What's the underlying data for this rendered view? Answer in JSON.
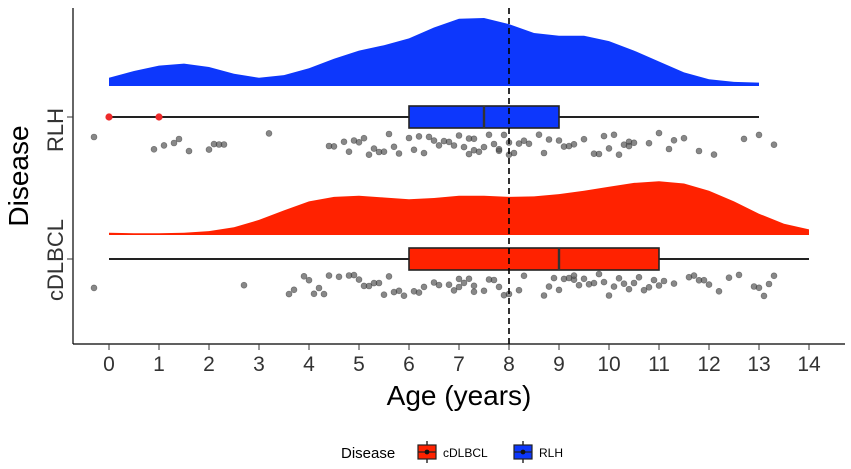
{
  "chart_data": {
    "type": "raincloud",
    "xlabel": "Age (years)",
    "ylabel": "Disease",
    "xlim": [
      -0.7,
      14.8
    ],
    "xticks": [
      "0",
      "1",
      "2",
      "3",
      "4",
      "5",
      "6",
      "7",
      "8",
      "9",
      "10",
      "11",
      "12",
      "13",
      "14"
    ],
    "reference_line_x": 8,
    "legend": {
      "title": "Disease",
      "position": "bottom",
      "entries": [
        "cDLBCL",
        "RLH"
      ]
    },
    "colors": {
      "cDLBCL": "#ff2200",
      "RLH": "#0d37fc",
      "outlier": "#ee2a2a",
      "point": "#555555"
    },
    "series": [
      {
        "name": "RLH",
        "label": "RLH",
        "box": {
          "min": 0,
          "q1": 6,
          "median": 7.5,
          "q3": 9,
          "max": 13
        },
        "outliers": [
          0,
          1
        ],
        "density": {
          "x": [
            0,
            0.5,
            1,
            1.5,
            2,
            2.5,
            3,
            3.5,
            4,
            4.5,
            5,
            5.5,
            6,
            6.5,
            7,
            7.5,
            8,
            8.5,
            9,
            9.5,
            10,
            10.5,
            11,
            11.5,
            12,
            12.5,
            13
          ],
          "y": [
            0.12,
            0.22,
            0.3,
            0.33,
            0.28,
            0.18,
            0.12,
            0.16,
            0.26,
            0.4,
            0.52,
            0.6,
            0.7,
            0.86,
            0.99,
            1.0,
            0.91,
            0.78,
            0.74,
            0.74,
            0.66,
            0.52,
            0.36,
            0.2,
            0.1,
            0.06,
            0.05
          ]
        },
        "points": [
          -0.3,
          0.9,
          1.1,
          1.3,
          1.4,
          1.6,
          2.0,
          2.1,
          2.2,
          2.3,
          3.2,
          4.4,
          4.5,
          4.7,
          4.8,
          4.9,
          5.0,
          5.1,
          5.2,
          5.3,
          5.4,
          5.5,
          5.6,
          5.7,
          5.8,
          6.0,
          6.1,
          6.2,
          6.3,
          6.4,
          6.5,
          6.6,
          6.7,
          6.8,
          6.9,
          7.0,
          7.1,
          7.2,
          7.2,
          7.3,
          7.3,
          7.4,
          7.5,
          7.6,
          7.7,
          7.8,
          7.8,
          7.9,
          8.0,
          8.0,
          8.1,
          8.2,
          8.3,
          8.4,
          8.6,
          8.7,
          8.8,
          9.0,
          9.1,
          9.2,
          9.3,
          9.5,
          9.7,
          9.8,
          9.9,
          10.0,
          10.1,
          10.2,
          10.3,
          10.4,
          10.4,
          10.5,
          10.8,
          11.0,
          11.2,
          11.3,
          11.5,
          11.8,
          12.1,
          12.7,
          13.0,
          13.3
        ]
      },
      {
        "name": "cDLBCL",
        "label": "cDLBCL",
        "box": {
          "min": 0,
          "q1": 6,
          "median": 9,
          "q3": 11,
          "max": 14
        },
        "outliers": [],
        "density": {
          "x": [
            0,
            0.5,
            1,
            1.5,
            2,
            2.5,
            3,
            3.5,
            4,
            4.5,
            5,
            5.5,
            6,
            6.5,
            7,
            7.5,
            8,
            8.5,
            9,
            9.5,
            10,
            10.5,
            11,
            11.5,
            12,
            12.5,
            13,
            13.5,
            14
          ],
          "y": [
            0.04,
            0.03,
            0.03,
            0.04,
            0.07,
            0.14,
            0.27,
            0.44,
            0.6,
            0.68,
            0.7,
            0.67,
            0.64,
            0.66,
            0.7,
            0.7,
            0.68,
            0.69,
            0.73,
            0.79,
            0.86,
            0.93,
            0.96,
            0.92,
            0.79,
            0.6,
            0.38,
            0.2,
            0.1
          ]
        },
        "points": [
          -0.3,
          2.7,
          3.6,
          3.7,
          3.9,
          4.0,
          4.1,
          4.2,
          4.3,
          4.4,
          4.6,
          4.8,
          4.9,
          5.0,
          5.1,
          5.2,
          5.3,
          5.4,
          5.5,
          5.6,
          5.7,
          5.8,
          5.9,
          6.1,
          6.2,
          6.3,
          6.5,
          6.6,
          6.8,
          6.9,
          7.0,
          7.0,
          7.1,
          7.2,
          7.3,
          7.3,
          7.5,
          7.6,
          7.7,
          7.8,
          7.9,
          8.0,
          8.2,
          8.3,
          8.7,
          8.8,
          8.9,
          9.0,
          9.1,
          9.2,
          9.3,
          9.3,
          9.4,
          9.5,
          9.6,
          9.7,
          9.8,
          9.9,
          10.0,
          10.1,
          10.2,
          10.3,
          10.4,
          10.5,
          10.6,
          10.7,
          10.8,
          10.9,
          11.0,
          11.1,
          11.3,
          11.6,
          11.7,
          11.8,
          11.9,
          12.0,
          12.2,
          12.4,
          12.6,
          12.9,
          13.0,
          13.1,
          13.2,
          13.3
        ]
      }
    ]
  }
}
